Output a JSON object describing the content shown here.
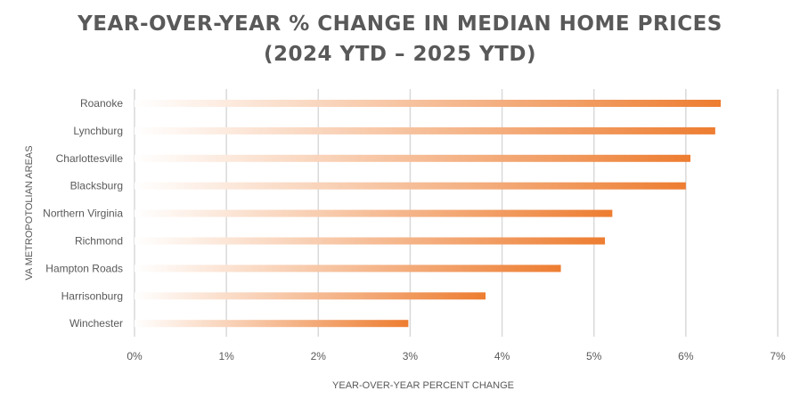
{
  "chart_data": {
    "type": "bar",
    "orientation": "horizontal",
    "title": "YEAR-OVER-YEAR % CHANGE IN MEDIAN HOME PRICES",
    "subtitle": "(2024 YTD – 2025 YTD)",
    "xlabel": "YEAR-OVER-YEAR PERCENT CHANGE",
    "ylabel": "VA METROPOTOLIAN AREAS",
    "categories": [
      "Roanoke",
      "Lynchburg",
      "Charlottesville",
      "Blacksburg",
      "Northern Virginia",
      "Richmond",
      "Hampton Roads",
      "Harrisonburg",
      "Winchester"
    ],
    "values": [
      6.38,
      6.32,
      6.05,
      6.0,
      5.2,
      5.12,
      4.64,
      3.82,
      2.98
    ],
    "xlim": [
      0,
      7
    ],
    "xticks": [
      "0%",
      "1%",
      "2%",
      "3%",
      "4%",
      "5%",
      "6%",
      "7%"
    ],
    "grid": "vertical",
    "legend": "none",
    "bar_color": "#ED7D31",
    "bar_gradient": "fades from white at 0% to orange at bar end"
  }
}
